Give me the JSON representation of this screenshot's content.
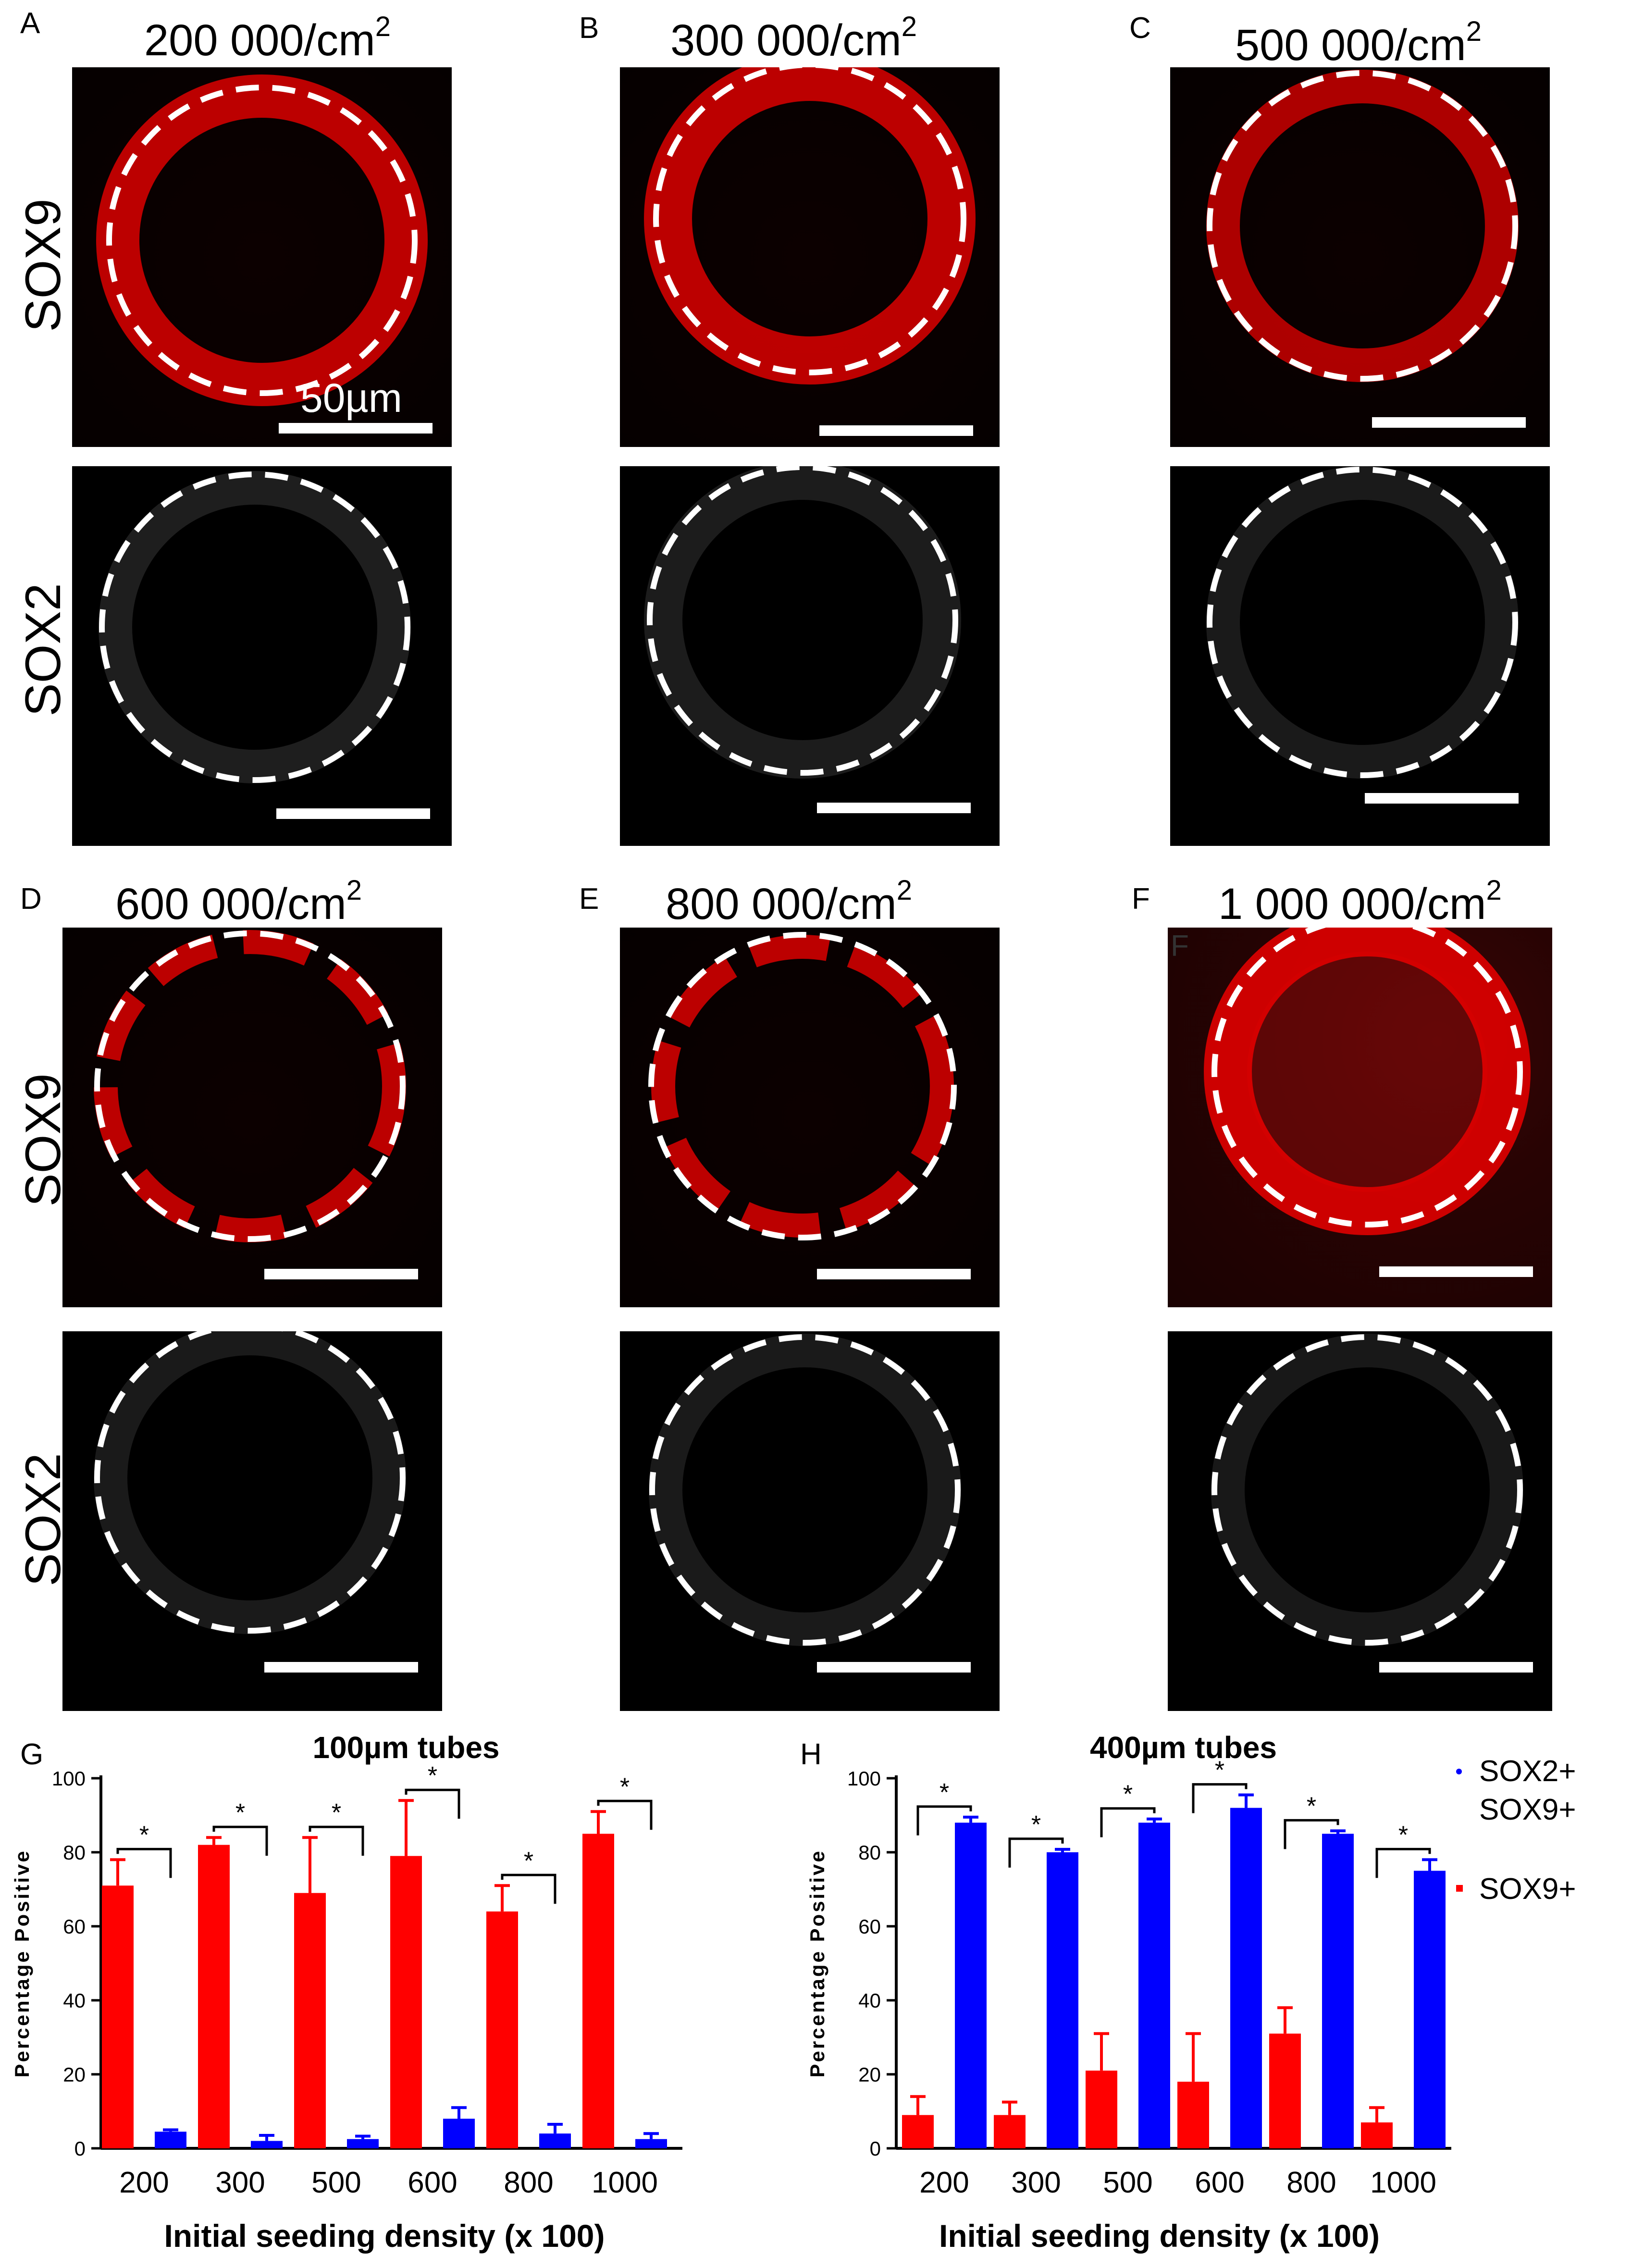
{
  "panels_top": [
    {
      "letter": "A",
      "density": "200 000/cm",
      "sup": "2",
      "scale_label": "50µm"
    },
    {
      "letter": "B",
      "density": "300 000/cm",
      "sup": "2"
    },
    {
      "letter": "C",
      "density": "500 000/cm",
      "sup": "2"
    }
  ],
  "panels_bottom": [
    {
      "letter": "D",
      "density": "600 000/cm",
      "sup": "2"
    },
    {
      "letter": "E",
      "density": "800 000/cm",
      "sup": "2"
    },
    {
      "letter": "F",
      "density": "1 000 000/cm",
      "sup": "2",
      "inner_letter": "F"
    }
  ],
  "row_labels": {
    "sox9": "SOX9",
    "sox2": "SOX2"
  },
  "legend": {
    "entry1_line1": "SOX2+",
    "entry1_line2": "SOX9+",
    "entry2": "SOX9+",
    "color_sox2_sox9": "#0000ff",
    "color_sox9": "#ff0000"
  },
  "chart_data": [
    {
      "panel": "G",
      "type": "bar",
      "title": "100µm tubes",
      "xlabel": "Initial seeding density (x 100)",
      "ylabel": "Percentage Positive",
      "ylim": [
        0,
        100
      ],
      "yticks": [
        "0",
        "20",
        "40",
        "60",
        "80",
        "100"
      ],
      "categories": [
        "200",
        "300",
        "500",
        "600",
        "800",
        "1000"
      ],
      "significance": [
        "*",
        "*",
        "*",
        "*",
        "*",
        "*"
      ],
      "series": [
        {
          "name": "SOX9+",
          "color": "#ff0000",
          "values": [
            71,
            82,
            69,
            79,
            64,
            85
          ],
          "errors": [
            7,
            2,
            15,
            15,
            7,
            6
          ]
        },
        {
          "name": "SOX2+ SOX9+",
          "color": "#0000ff",
          "values": [
            4.5,
            2,
            2.5,
            8,
            4,
            2.5
          ],
          "errors": [
            0.5,
            1.5,
            0.8,
            3,
            2.5,
            1.5
          ]
        }
      ]
    },
    {
      "panel": "H",
      "type": "bar",
      "title": "400µm tubes",
      "xlabel": "Initial seeding density (x 100)",
      "ylabel": "Percentage Positive",
      "ylim": [
        0,
        100
      ],
      "yticks": [
        "0",
        "20",
        "40",
        "60",
        "80",
        "100"
      ],
      "categories": [
        "200",
        "300",
        "500",
        "600",
        "800",
        "1000"
      ],
      "significance": [
        "*",
        "*",
        "*",
        "*",
        "*",
        "*"
      ],
      "series": [
        {
          "name": "SOX9+",
          "color": "#ff0000",
          "values": [
            9,
            9,
            21,
            18,
            31,
            7
          ],
          "errors": [
            5,
            3.5,
            10,
            13,
            7,
            4
          ]
        },
        {
          "name": "SOX2+ SOX9+",
          "color": "#0000ff",
          "values": [
            88,
            80,
            88,
            92,
            85,
            75
          ],
          "errors": [
            1.5,
            0.8,
            1,
            3.5,
            0.8,
            3
          ]
        }
      ]
    }
  ]
}
